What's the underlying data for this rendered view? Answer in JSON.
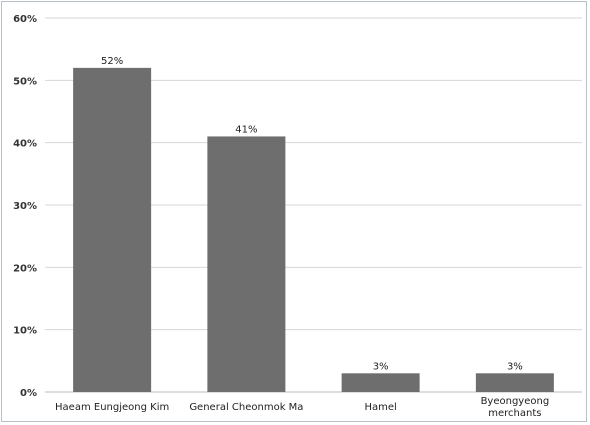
{
  "chart_data": {
    "type": "bar",
    "title": "",
    "xlabel": "",
    "ylabel": "",
    "categories": [
      [
        "Haeam Eungjeong Kim"
      ],
      [
        "General Cheonmok Ma"
      ],
      [
        "Hamel"
      ],
      [
        "Byeongyeong",
        "merchants"
      ]
    ],
    "values": [
      52,
      41,
      3,
      3
    ],
    "data_labels": [
      "52%",
      "41%",
      "3%",
      "3%"
    ],
    "yticks": [
      "0%",
      "10%",
      "20%",
      "30%",
      "40%",
      "50%",
      "60%"
    ],
    "ylim": [
      0,
      60
    ],
    "grid": true,
    "legend": "none",
    "bar_color": "#6e6e6e",
    "grid_color": "#d7d7d7"
  }
}
